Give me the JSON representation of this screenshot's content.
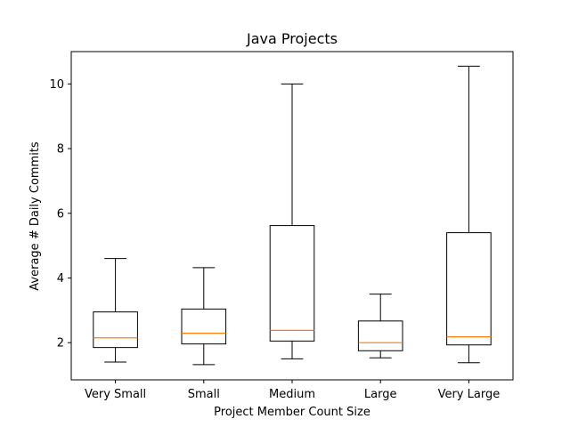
{
  "chart_data": {
    "type": "box",
    "title": "Java Projects",
    "xlabel": "Project Member Count Size",
    "ylabel": "Average # Daily Commits",
    "ylim": [
      0.85,
      11.0
    ],
    "yticks": [
      2,
      4,
      6,
      8,
      10
    ],
    "grid": false,
    "categories": [
      "Very Small",
      "Small",
      "Medium",
      "Large",
      "Very Large"
    ],
    "boxes": [
      {
        "category": "Very Small",
        "whisker_low": 1.4,
        "q1": 1.85,
        "median": 2.15,
        "q3": 2.95,
        "whisker_high": 4.6
      },
      {
        "category": "Small",
        "whisker_low": 1.32,
        "q1": 1.96,
        "median": 2.29,
        "q3": 3.04,
        "whisker_high": 4.32
      },
      {
        "category": "Medium",
        "whisker_low": 1.5,
        "q1": 2.05,
        "median": 2.38,
        "q3": 5.62,
        "whisker_high": 10.0
      },
      {
        "category": "Large",
        "whisker_low": 1.53,
        "q1": 1.75,
        "median": 2.0,
        "q3": 2.67,
        "whisker_high": 3.5
      },
      {
        "category": "Very Large",
        "whisker_low": 1.38,
        "q1": 1.93,
        "median": 2.18,
        "q3": 5.4,
        "whisker_high": 10.55
      }
    ],
    "colors": {
      "box": "#000000",
      "median": "#ff7f0e"
    }
  }
}
